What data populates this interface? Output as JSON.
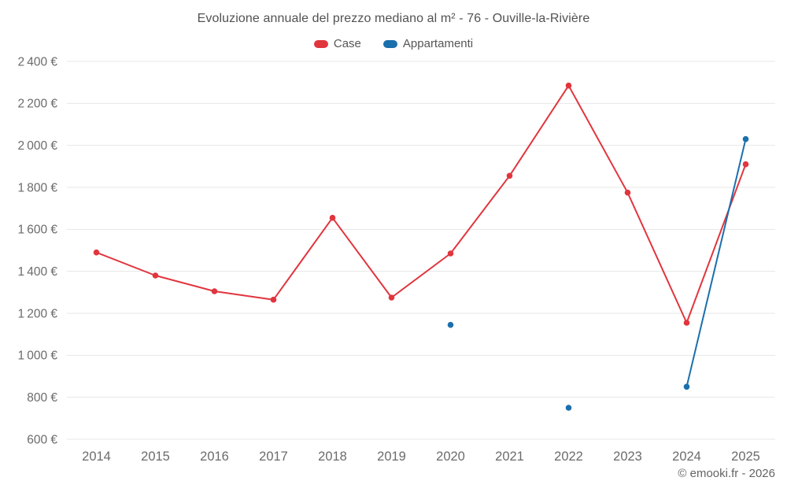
{
  "chart_data": {
    "type": "line",
    "title": "Evoluzione annuale del prezzo mediano al m² - 76 - Ouville-la-Rivière",
    "categories": [
      "2014",
      "2015",
      "2016",
      "2017",
      "2018",
      "2019",
      "2020",
      "2021",
      "2022",
      "2023",
      "2024",
      "2025"
    ],
    "ylim": [
      600,
      2400
    ],
    "ytick_step": 200,
    "y_unit": "€",
    "grid": "horizontal",
    "legend_position": "top",
    "series": [
      {
        "name": "Case",
        "color": "#e1353e",
        "values": [
          1490,
          1380,
          1305,
          1265,
          1655,
          1275,
          1485,
          1855,
          2285,
          1775,
          1155,
          1910
        ]
      },
      {
        "name": "Appartamenti",
        "color": "#1a6fad",
        "values": [
          null,
          null,
          null,
          null,
          null,
          null,
          1145,
          null,
          750,
          null,
          850,
          2030
        ]
      }
    ]
  },
  "colors": {
    "grid": "#e7e7e7",
    "tick_label": "#6b6b6b",
    "title": "#525252"
  },
  "footer": {
    "copyright": "© emooki.fr - 2026"
  }
}
